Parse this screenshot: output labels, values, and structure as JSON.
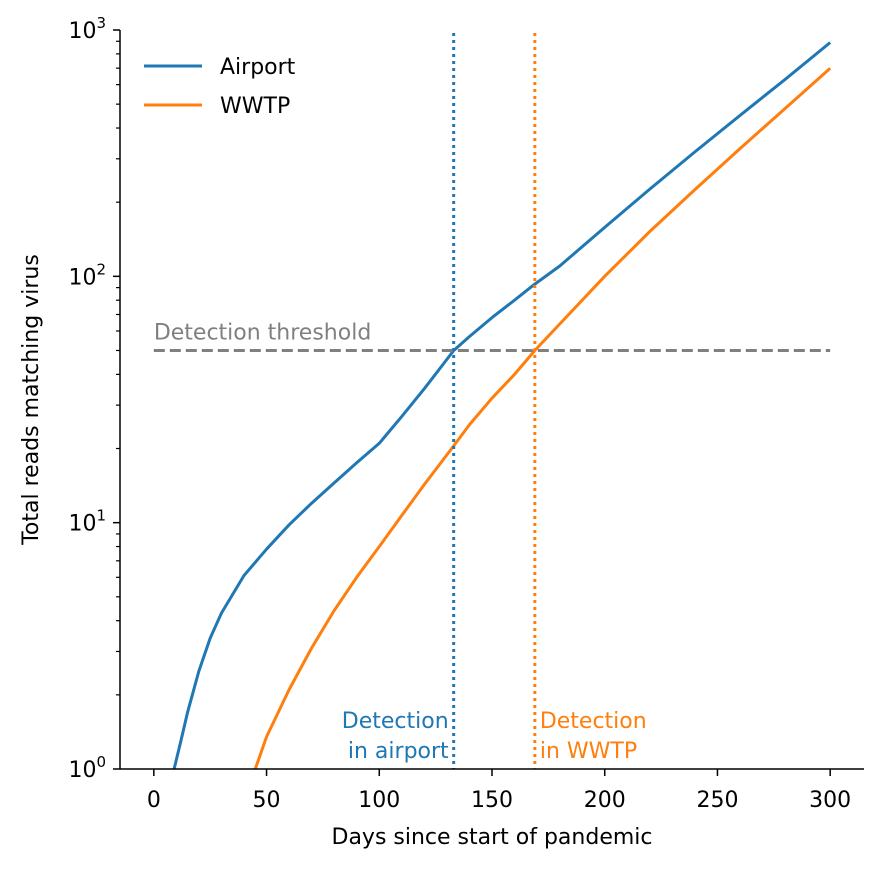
{
  "chart_data": {
    "type": "line",
    "xlabel": "Days since start of pandemic",
    "ylabel": "Total reads matching virus",
    "xlim": [
      -15,
      315
    ],
    "ylim": [
      1,
      1000
    ],
    "yscale": "log",
    "x_ticks": [
      0,
      50,
      100,
      150,
      200,
      250,
      300
    ],
    "y_ticks": [
      {
        "base": "10",
        "exp": "0",
        "value": 1
      },
      {
        "base": "10",
        "exp": "1",
        "value": 10
      },
      {
        "base": "10",
        "exp": "2",
        "value": 100
      },
      {
        "base": "10",
        "exp": "3",
        "value": 1000
      }
    ],
    "legend_position": "top-left",
    "grid": false,
    "series": [
      {
        "name": "Airport",
        "color": "#1f77b4",
        "x": [
          9,
          12,
          15,
          20,
          25,
          30,
          40,
          50,
          60,
          70,
          80,
          90,
          100,
          110,
          120,
          133,
          140,
          150,
          160,
          169,
          180,
          200,
          220,
          240,
          260,
          280,
          300
        ],
        "y": [
          1.0,
          1.3,
          1.7,
          2.5,
          3.4,
          4.3,
          6.1,
          7.8,
          9.8,
          12,
          14.5,
          17.5,
          21,
          27,
          35,
          50,
          57,
          68,
          80,
          93,
          110,
          158,
          226,
          320,
          450,
          630,
          890
        ]
      },
      {
        "name": "WWTP",
        "color": "#ff7f0e",
        "x": [
          45,
          50,
          60,
          70,
          80,
          90,
          100,
          110,
          120,
          133,
          140,
          150,
          160,
          169,
          180,
          200,
          220,
          240,
          260,
          280,
          300
        ],
        "y": [
          1.0,
          1.35,
          2.1,
          3.1,
          4.4,
          6.0,
          8.0,
          10.7,
          14.3,
          20.5,
          25,
          32,
          40,
          50,
          64,
          100,
          152,
          225,
          330,
          480,
          700
        ]
      }
    ],
    "threshold": {
      "label": "Detection threshold",
      "value": 50,
      "x_start": 0,
      "x_end": 300,
      "color": "#808080"
    },
    "detections": [
      {
        "x": 133,
        "color": "#1f77b4",
        "line1": "Detection",
        "line2": "in airport",
        "align": "right"
      },
      {
        "x": 169,
        "color": "#ff7f0e",
        "line1": "Detection",
        "line2": "in WWTP",
        "align": "left"
      }
    ]
  }
}
